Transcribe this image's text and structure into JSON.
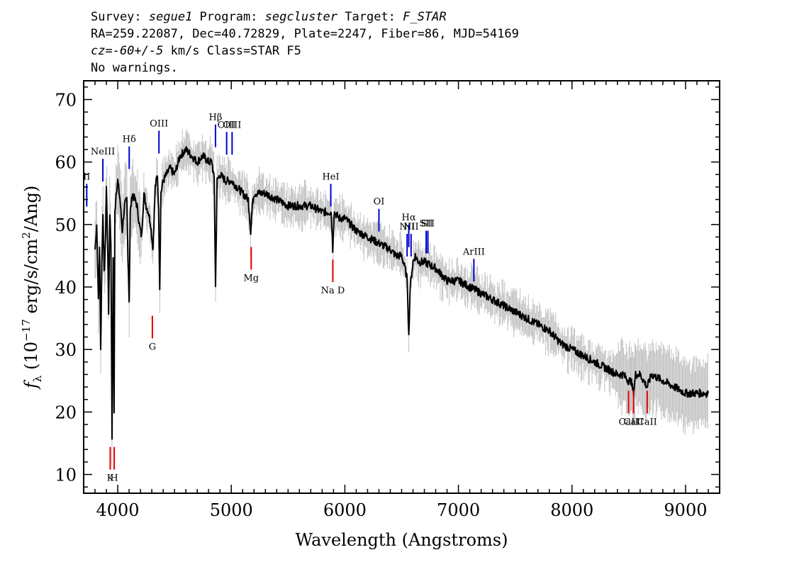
{
  "header": {
    "line1": {
      "survey_label": "Survey: ",
      "survey": "segue1",
      "program_label": " Program: ",
      "program": "segcluster",
      "target_label": " Target: ",
      "target": "F_STAR"
    },
    "line2": "RA=259.22087, Dec=40.72829, Plate=2247, Fiber=86, MJD=54169",
    "line3": {
      "cz": "cz=-60+/-5",
      "rest": " km/s Class=STAR F5"
    },
    "line4": "No warnings."
  },
  "colors": {
    "flux": "#000000",
    "error": "#c0c0c0",
    "emission": "#0000cc",
    "absorption": "#dd0000"
  },
  "chart_data": {
    "type": "line",
    "xlabel": "Wavelength (Angstroms)",
    "ylabel": "f_λ (10^-17 erg/s/cm^2/Ang)",
    "ylabel_parts": {
      "f": "f",
      "lambda": "λ",
      "open": "(10",
      "exp": "−17",
      "mid": " erg/s/cm",
      "sq": "2",
      "close": "/Ang)"
    },
    "xlim": [
      3700,
      9300
    ],
    "ylim": [
      7,
      73
    ],
    "xticks": [
      4000,
      5000,
      6000,
      7000,
      8000,
      9000
    ],
    "yticks": [
      10,
      20,
      30,
      40,
      50,
      60,
      70
    ],
    "series": [
      {
        "role": "flux",
        "x": [
          3800,
          3815,
          3830,
          3840,
          3850,
          3860,
          3870,
          3880,
          3890,
          3900,
          3910,
          3920,
          3930,
          3940,
          3950,
          3960,
          3968,
          3975,
          3985,
          4000,
          4020,
          4040,
          4060,
          4080,
          4090,
          4101,
          4110,
          4130,
          4150,
          4170,
          4190,
          4210,
          4230,
          4250,
          4270,
          4290,
          4310,
          4330,
          4350,
          4360,
          4370,
          4380,
          4400,
          4430,
          4460,
          4500,
          4550,
          4600,
          4650,
          4700,
          4750,
          4800,
          4830,
          4850,
          4861,
          4875,
          4900,
          4950,
          5000,
          5050,
          5100,
          5150,
          5170,
          5185,
          5200,
          5250,
          5300,
          5400,
          5500,
          5600,
          5700,
          5800,
          5850,
          5880,
          5893,
          5905,
          5950,
          6000,
          6100,
          6200,
          6300,
          6400,
          6450,
          6500,
          6530,
          6550,
          6563,
          6575,
          6600,
          6620,
          6650,
          6700,
          6800,
          6900,
          7000,
          7100,
          7200,
          7300,
          7400,
          7500,
          7600,
          7700,
          7800,
          7900,
          8000,
          8100,
          8200,
          8300,
          8400,
          8450,
          8498,
          8520,
          8542,
          8560,
          8600,
          8662,
          8700,
          8800,
          8900,
          9000,
          9100,
          9200
        ],
        "y": [
          46,
          50,
          38,
          46,
          30,
          44,
          52,
          42,
          46,
          56,
          48,
          36,
          52,
          47,
          16,
          45,
          20,
          52,
          55,
          57,
          54,
          49,
          53,
          54,
          45,
          38,
          52,
          55,
          54,
          53,
          50,
          48,
          55,
          53,
          52,
          50,
          46,
          56,
          58,
          52,
          40,
          55,
          57,
          58,
          59,
          58,
          61,
          62,
          61,
          60,
          61,
          60,
          60,
          57,
          40,
          57,
          58,
          57,
          57,
          56,
          55,
          54,
          49,
          53,
          55,
          55,
          55,
          54,
          53,
          53,
          53,
          52,
          52,
          52,
          46,
          52,
          51,
          51,
          49,
          48,
          47,
          46,
          45,
          45,
          43,
          41,
          32,
          40,
          44,
          45,
          44,
          44,
          43,
          41,
          41,
          40,
          39,
          38,
          37,
          36,
          35,
          34,
          33,
          31,
          30,
          29,
          28,
          27,
          26,
          26,
          25,
          25,
          23,
          26,
          26,
          24,
          26,
          25,
          24,
          23,
          23,
          23
        ]
      }
    ],
    "emission_lines": [
      {
        "label": "NeIII",
        "x": 3869,
        "y": 63
      },
      {
        "label": "Hδ",
        "x": 4101,
        "y": 65
      },
      {
        "label": "OIII",
        "x": 4363,
        "y": 67.5
      },
      {
        "label": "Hβ",
        "x": 4861,
        "y": 68.5
      },
      {
        "label": "OIII",
        "x": 4959,
        "y": 67.3
      },
      {
        "label": "OIII",
        "x": 5007,
        "y": 67.3
      },
      {
        "label": "HeI",
        "x": 5876,
        "y": 59
      },
      {
        "label": "OI",
        "x": 6300,
        "y": 55
      },
      {
        "label": "NII",
        "x": 6548,
        "y": 51
      },
      {
        "label": "Hα",
        "x": 6563,
        "y": 52.5
      },
      {
        "label": "NII",
        "x": 6583,
        "y": 51
      },
      {
        "label": "SII",
        "x": 6716,
        "y": 51.5
      },
      {
        "label": "SII",
        "x": 6731,
        "y": 51.5
      },
      {
        "label": "ArIII",
        "x": 7136,
        "y": 47
      },
      {
        "label": "II",
        "x": 3727,
        "y": 59
      }
    ],
    "absorption_lines": [
      {
        "label": "K",
        "x": 3934,
        "y": 11
      },
      {
        "label": "H",
        "x": 3969,
        "y": 11
      },
      {
        "label": "G",
        "x": 4305,
        "y": 32
      },
      {
        "label": "Mg",
        "x": 5175,
        "y": 43
      },
      {
        "label": "Na D",
        "x": 5894,
        "y": 41
      },
      {
        "label": "CaII",
        "x": 8498,
        "y": 20
      },
      {
        "label": "CaII",
        "x": 8542,
        "y": 20
      },
      {
        "label": "CaII",
        "x": 8662,
        "y": 20
      }
    ]
  }
}
